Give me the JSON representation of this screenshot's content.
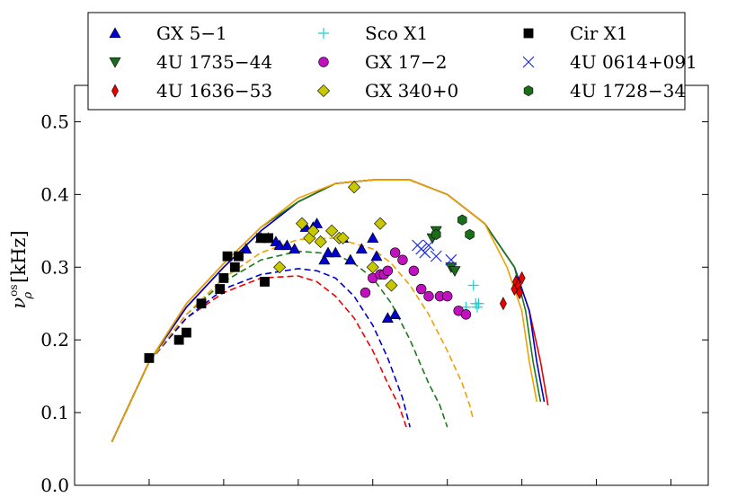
{
  "chart_data": {
    "type": "scatter",
    "title": "",
    "xlabel": "",
    "ylabel": "ν_ρ^os [kHz]",
    "ylabel_main": "ν",
    "ylabel_sub": "ρ",
    "ylabel_sup": "os",
    "ylabel_unit": "[kHz]",
    "xlim": [
      0,
      8.5
    ],
    "ylim": [
      0.0,
      0.55
    ],
    "yticks": [
      "0.0",
      "0.1",
      "0.2",
      "0.3",
      "0.4",
      "0.5"
    ],
    "ytick_values": [
      0.0,
      0.1,
      0.2,
      0.3,
      0.4,
      0.5
    ],
    "xtick_values": [
      1,
      2,
      3,
      4,
      5,
      6,
      7,
      8
    ],
    "grid": false,
    "legend_position": "top-center",
    "series": [
      {
        "name": "GX 5−1",
        "marker": "triangle-up",
        "color": "#0000cc",
        "points": [
          [
            2.3,
            0.325
          ],
          [
            2.5,
            0.34
          ],
          [
            2.6,
            0.34
          ],
          [
            2.7,
            0.335
          ],
          [
            2.75,
            0.33
          ],
          [
            2.85,
            0.33
          ],
          [
            2.95,
            0.325
          ],
          [
            3.1,
            0.355
          ],
          [
            3.2,
            0.355
          ],
          [
            3.25,
            0.36
          ],
          [
            3.35,
            0.31
          ],
          [
            3.4,
            0.32
          ],
          [
            3.5,
            0.32
          ],
          [
            3.6,
            0.34
          ],
          [
            3.7,
            0.31
          ],
          [
            3.85,
            0.325
          ],
          [
            4.0,
            0.34
          ],
          [
            4.05,
            0.315
          ],
          [
            4.2,
            0.23
          ],
          [
            4.3,
            0.235
          ]
        ]
      },
      {
        "name": "4U 1735−44",
        "marker": "triangle-down",
        "color": "#1a6e1a",
        "points": [
          [
            4.8,
            0.34
          ],
          [
            4.85,
            0.35
          ],
          [
            5.05,
            0.3
          ],
          [
            5.1,
            0.295
          ]
        ]
      },
      {
        "name": "4U 1636−53",
        "marker": "diamond-thin",
        "color": "#ee0000",
        "points": [
          [
            5.75,
            0.25
          ],
          [
            5.9,
            0.27
          ],
          [
            5.92,
            0.28
          ],
          [
            5.95,
            0.275
          ],
          [
            5.97,
            0.265
          ],
          [
            6.0,
            0.285
          ]
        ]
      },
      {
        "name": "Sco X1",
        "marker": "plus",
        "color": "#22cccc",
        "points": [
          [
            5.25,
            0.245
          ],
          [
            5.35,
            0.275
          ],
          [
            5.38,
            0.25
          ],
          [
            5.4,
            0.245
          ],
          [
            5.42,
            0.25
          ]
        ]
      },
      {
        "name": "GX 17−2",
        "marker": "circle",
        "color": "#c010c0",
        "points": [
          [
            3.9,
            0.265
          ],
          [
            4.0,
            0.285
          ],
          [
            4.1,
            0.29
          ],
          [
            4.15,
            0.29
          ],
          [
            4.2,
            0.295
          ],
          [
            4.3,
            0.32
          ],
          [
            4.4,
            0.31
          ],
          [
            4.55,
            0.295
          ],
          [
            4.65,
            0.27
          ],
          [
            4.75,
            0.26
          ],
          [
            4.9,
            0.26
          ],
          [
            5.0,
            0.26
          ],
          [
            5.15,
            0.24
          ],
          [
            5.25,
            0.235
          ]
        ]
      },
      {
        "name": "GX 340+0",
        "marker": "diamond",
        "color": "#c8c800",
        "points": [
          [
            2.75,
            0.3
          ],
          [
            3.05,
            0.36
          ],
          [
            3.15,
            0.34
          ],
          [
            3.2,
            0.35
          ],
          [
            3.3,
            0.335
          ],
          [
            3.45,
            0.35
          ],
          [
            3.55,
            0.34
          ],
          [
            3.6,
            0.34
          ],
          [
            3.75,
            0.41
          ],
          [
            4.0,
            0.3
          ],
          [
            4.1,
            0.36
          ],
          [
            4.25,
            0.275
          ]
        ]
      },
      {
        "name": "Cir X1",
        "marker": "square",
        "color": "#000000",
        "points": [
          [
            1.0,
            0.175
          ],
          [
            1.4,
            0.2
          ],
          [
            1.5,
            0.21
          ],
          [
            1.7,
            0.25
          ],
          [
            1.95,
            0.27
          ],
          [
            2.0,
            0.285
          ],
          [
            2.05,
            0.315
          ],
          [
            2.15,
            0.3
          ],
          [
            2.2,
            0.315
          ],
          [
            2.5,
            0.34
          ],
          [
            2.55,
            0.28
          ],
          [
            2.6,
            0.34
          ]
        ]
      },
      {
        "name": "4U 0614+091",
        "marker": "x",
        "color": "#2030e0",
        "points": [
          [
            4.6,
            0.33
          ],
          [
            4.65,
            0.325
          ],
          [
            4.7,
            0.32
          ],
          [
            4.75,
            0.33
          ],
          [
            4.85,
            0.315
          ],
          [
            5.05,
            0.31
          ]
        ]
      },
      {
        "name": "4U 1728−34",
        "marker": "hexagon",
        "color": "#1a6e1a",
        "points": [
          [
            4.85,
            0.345
          ],
          [
            5.2,
            0.365
          ],
          [
            5.3,
            0.345
          ]
        ]
      }
    ],
    "curves": [
      {
        "name": "solid red",
        "style": "solid",
        "color": "#ee0000",
        "x": [
          0.5,
          1,
          1.5,
          2,
          2.5,
          3,
          3.5,
          4,
          4.5,
          5,
          5.5,
          5.9,
          6.1,
          6.25,
          6.35
        ],
        "y": [
          0.06,
          0.17,
          0.245,
          0.3,
          0.35,
          0.39,
          0.415,
          0.42,
          0.42,
          0.4,
          0.36,
          0.3,
          0.24,
          0.17,
          0.11
        ]
      },
      {
        "name": "solid blue",
        "style": "solid",
        "color": "#0000cc",
        "x": [
          0.5,
          1,
          1.5,
          2,
          2.5,
          3,
          3.5,
          4,
          4.5,
          5,
          5.5,
          5.9,
          6.1,
          6.2,
          6.3
        ],
        "y": [
          0.06,
          0.17,
          0.245,
          0.3,
          0.35,
          0.39,
          0.415,
          0.42,
          0.42,
          0.4,
          0.36,
          0.3,
          0.24,
          0.17,
          0.115
        ]
      },
      {
        "name": "solid green",
        "style": "solid",
        "color": "#1a7a1a",
        "x": [
          0.5,
          1,
          1.5,
          2,
          2.5,
          3,
          3.5,
          4,
          4.5,
          5,
          5.5,
          5.9,
          6.05,
          6.15,
          6.25
        ],
        "y": [
          0.06,
          0.17,
          0.25,
          0.305,
          0.355,
          0.39,
          0.415,
          0.42,
          0.42,
          0.4,
          0.36,
          0.3,
          0.24,
          0.17,
          0.115
        ]
      },
      {
        "name": "solid orange",
        "style": "solid",
        "color": "#f0a000",
        "x": [
          0.5,
          1,
          1.5,
          2,
          2.5,
          3,
          3.5,
          4,
          4.5,
          5,
          5.5,
          5.8,
          6.0,
          6.1,
          6.2
        ],
        "y": [
          0.06,
          0.17,
          0.25,
          0.305,
          0.355,
          0.395,
          0.415,
          0.42,
          0.42,
          0.4,
          0.36,
          0.3,
          0.24,
          0.17,
          0.115
        ]
      },
      {
        "name": "dashed red",
        "style": "dashed",
        "color": "#ee0000",
        "x": [
          0.5,
          1,
          1.5,
          2,
          2.5,
          3,
          3.25,
          3.5,
          3.75,
          4,
          4.2,
          4.35,
          4.45
        ],
        "y": [
          0.06,
          0.17,
          0.23,
          0.265,
          0.285,
          0.288,
          0.28,
          0.26,
          0.23,
          0.185,
          0.14,
          0.11,
          0.08
        ]
      },
      {
        "name": "dashed blue",
        "style": "dashed",
        "color": "#0000cc",
        "x": [
          0.5,
          1,
          1.5,
          2,
          2.5,
          3,
          3.25,
          3.5,
          3.75,
          4,
          4.2,
          4.4,
          4.5
        ],
        "y": [
          0.06,
          0.17,
          0.23,
          0.27,
          0.29,
          0.298,
          0.295,
          0.285,
          0.26,
          0.22,
          0.175,
          0.12,
          0.08
        ]
      },
      {
        "name": "dashed green",
        "style": "dashed",
        "color": "#1a7a1a",
        "x": [
          0.5,
          1,
          1.5,
          2,
          2.5,
          3,
          3.5,
          3.75,
          4,
          4.25,
          4.5,
          4.75,
          4.9,
          5.0
        ],
        "y": [
          0.06,
          0.17,
          0.235,
          0.28,
          0.31,
          0.322,
          0.318,
          0.305,
          0.285,
          0.25,
          0.2,
          0.14,
          0.11,
          0.08
        ]
      },
      {
        "name": "dashed orange",
        "style": "dashed",
        "color": "#f0a000",
        "x": [
          0.5,
          1,
          1.5,
          2,
          2.5,
          3,
          3.5,
          4,
          4.25,
          4.5,
          4.75,
          5.0,
          5.2,
          5.3,
          5.35
        ],
        "y": [
          0.06,
          0.17,
          0.235,
          0.285,
          0.32,
          0.338,
          0.34,
          0.325,
          0.305,
          0.275,
          0.235,
          0.185,
          0.14,
          0.11,
          0.09
        ]
      }
    ]
  }
}
